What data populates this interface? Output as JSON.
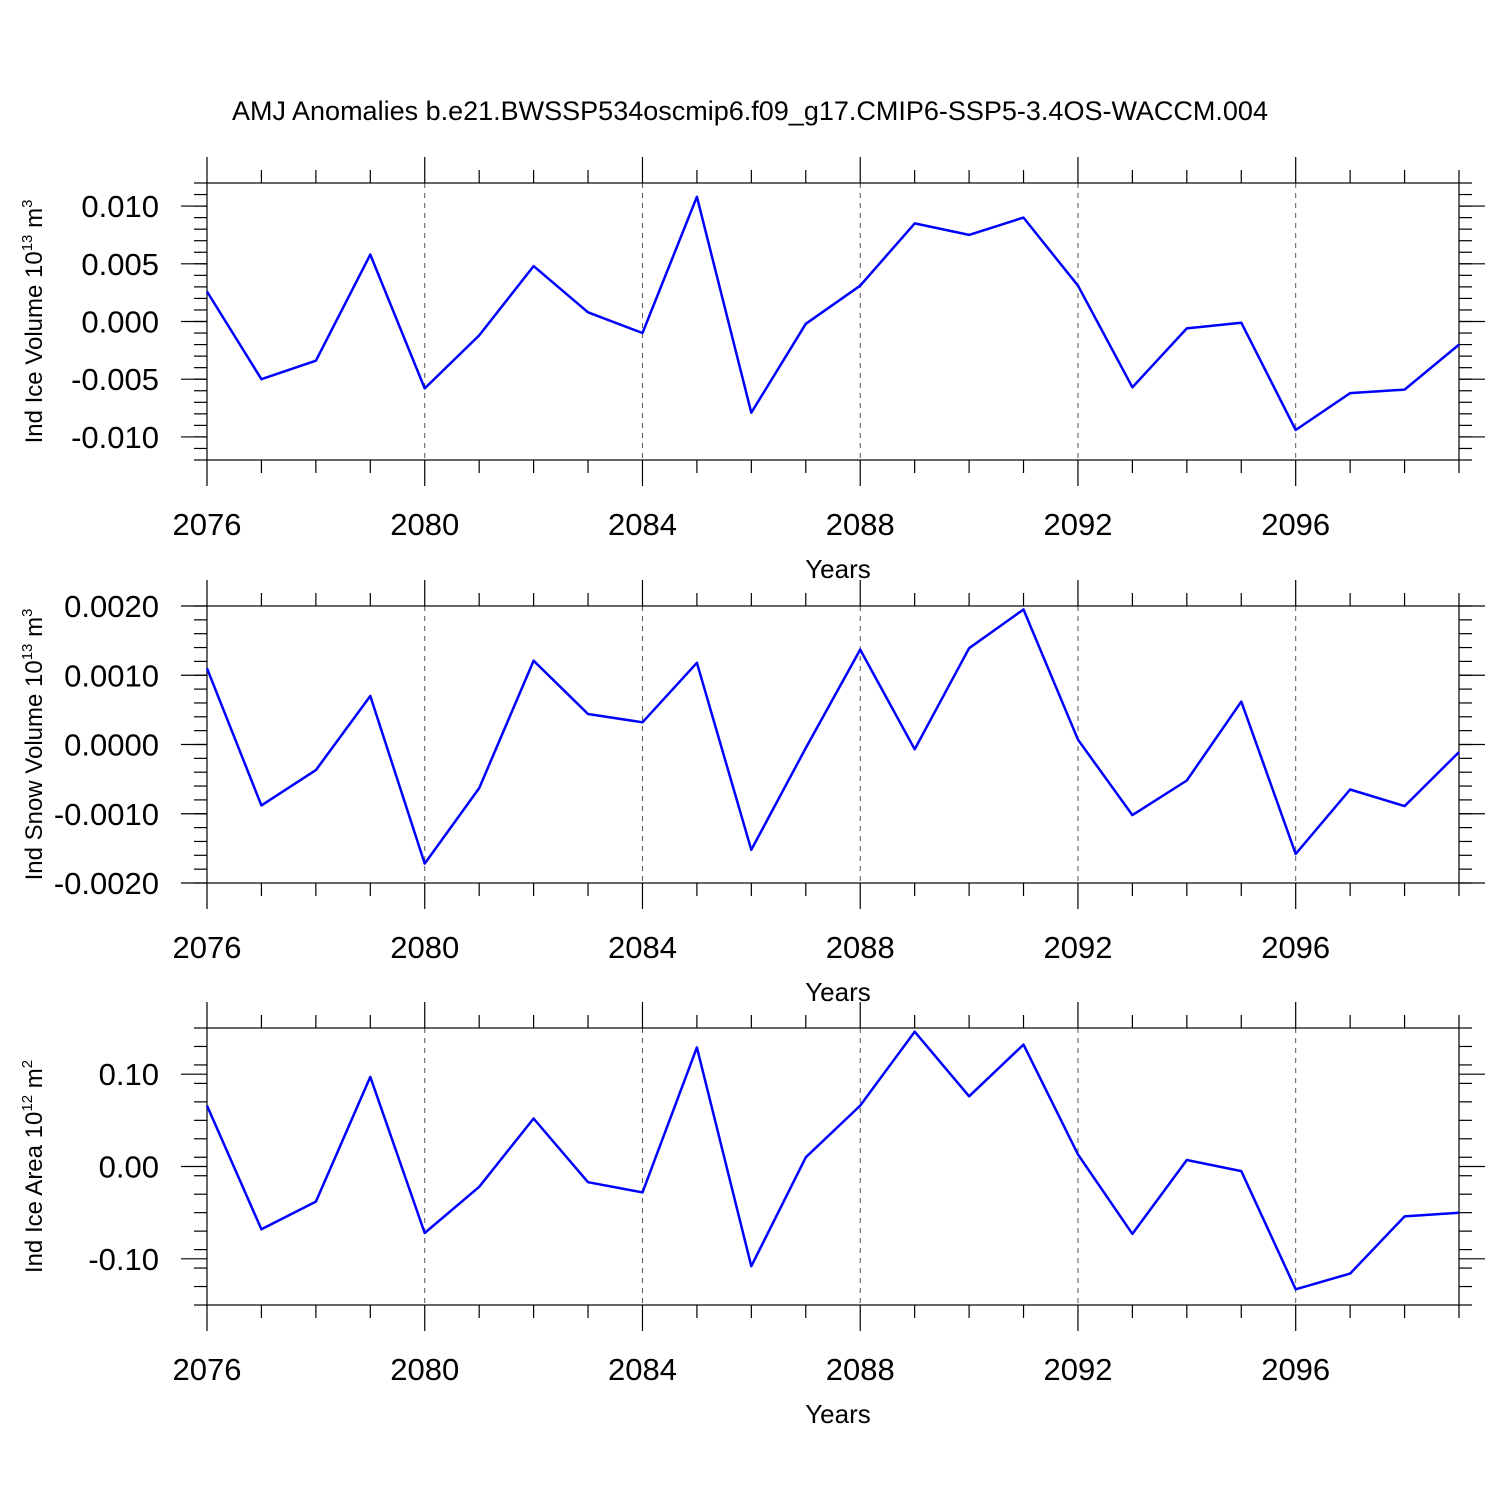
{
  "title": "AMJ Anomalies b.e21.BWSSP534oscmip6.f09_g17.CMIP6-SSP5-3.4OS-WACCM.004",
  "series_color": "#0000ff",
  "chart_data": [
    {
      "type": "line",
      "xlabel": "Years",
      "ylabel": {
        "text": "Ind Ice Volume 10",
        "exp": "13",
        "unit": " m",
        "unit_exp": "3"
      },
      "xlim": [
        2076,
        2099
      ],
      "ylim": [
        -0.012,
        0.012
      ],
      "xticks": [
        2076,
        2080,
        2084,
        2088,
        2092,
        2096
      ],
      "xtick_labels": [
        "2076",
        "2080",
        "2084",
        "2088",
        "2092",
        "2096"
      ],
      "yticks": [
        -0.01,
        -0.005,
        0.0,
        0.005,
        0.01
      ],
      "ytick_labels": [
        "-0.010",
        "-0.005",
        "0.000",
        "0.005",
        "0.010"
      ],
      "y_minor_step": 0.001,
      "x": [
        2076,
        2077,
        2078,
        2079,
        2080,
        2081,
        2082,
        2083,
        2084,
        2085,
        2086,
        2087,
        2088,
        2089,
        2090,
        2091,
        2092,
        2093,
        2094,
        2095,
        2096,
        2097,
        2098,
        2099
      ],
      "values": [
        0.0026,
        -0.005,
        -0.0034,
        0.0058,
        -0.0058,
        -0.0012,
        0.0048,
        0.0008,
        -0.001,
        0.0108,
        -0.0079,
        -0.0002,
        0.0031,
        0.0085,
        0.0075,
        0.009,
        0.0031,
        -0.0057,
        -0.0006,
        -0.0001,
        -0.0094,
        -0.0062,
        -0.0059,
        -0.002
      ]
    },
    {
      "type": "line",
      "xlabel": "Years",
      "ylabel": {
        "text": "Ind Snow Volume 10",
        "exp": "13",
        "unit": " m",
        "unit_exp": "3"
      },
      "xlim": [
        2076,
        2099
      ],
      "ylim": [
        -0.002,
        0.002
      ],
      "xticks": [
        2076,
        2080,
        2084,
        2088,
        2092,
        2096
      ],
      "xtick_labels": [
        "2076",
        "2080",
        "2084",
        "2088",
        "2092",
        "2096"
      ],
      "yticks": [
        -0.002,
        -0.001,
        0.0,
        0.001,
        0.002
      ],
      "ytick_labels": [
        "-0.0020",
        "-0.0010",
        "0.0000",
        "0.0010",
        "0.0020"
      ],
      "y_minor_step": 0.0002,
      "x": [
        2076,
        2077,
        2078,
        2079,
        2080,
        2081,
        2082,
        2083,
        2084,
        2085,
        2086,
        2087,
        2088,
        2089,
        2090,
        2091,
        2092,
        2093,
        2094,
        2095,
        2096,
        2097,
        2098,
        2099
      ],
      "values": [
        0.0011,
        -0.00088,
        -0.00037,
        0.0007,
        -0.00172,
        -0.00063,
        0.00121,
        0.00044,
        0.00032,
        0.00118,
        -0.00152,
        -5e-05,
        0.00137,
        -7e-05,
        0.00139,
        0.00195,
        7e-05,
        -0.00102,
        -0.00052,
        0.00062,
        -0.00158,
        -0.00065,
        -0.00089,
        -0.00011
      ]
    },
    {
      "type": "line",
      "xlabel": "Years",
      "ylabel": {
        "text": "Ind Ice Area 10",
        "exp": "12",
        "unit": " m",
        "unit_exp": "2"
      },
      "xlim": [
        2076,
        2099
      ],
      "ylim": [
        -0.15,
        0.15
      ],
      "xticks": [
        2076,
        2080,
        2084,
        2088,
        2092,
        2096
      ],
      "xtick_labels": [
        "2076",
        "2080",
        "2084",
        "2088",
        "2092",
        "2096"
      ],
      "yticks": [
        -0.1,
        0.0,
        0.1
      ],
      "ytick_labels": [
        "-0.10",
        "0.00",
        "0.10"
      ],
      "y_minor_step": 0.02,
      "x": [
        2076,
        2077,
        2078,
        2079,
        2080,
        2081,
        2082,
        2083,
        2084,
        2085,
        2086,
        2087,
        2088,
        2089,
        2090,
        2091,
        2092,
        2093,
        2094,
        2095,
        2096,
        2097,
        2098,
        2099
      ],
      "values": [
        0.066,
        -0.068,
        -0.038,
        0.097,
        -0.072,
        -0.022,
        0.052,
        -0.017,
        -0.028,
        0.129,
        -0.108,
        0.01,
        0.066,
        0.146,
        0.076,
        0.132,
        0.013,
        -0.073,
        0.007,
        -0.005,
        -0.133,
        -0.116,
        -0.054,
        -0.05
      ]
    }
  ]
}
